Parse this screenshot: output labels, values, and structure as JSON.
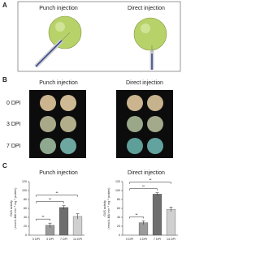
{
  "panel_a": {
    "label": "A",
    "titles": [
      "Punch injection",
      "Direct injection"
    ]
  },
  "panel_b": {
    "label": "B",
    "titles": [
      "Punch injection",
      "Direct injection"
    ],
    "rows": [
      "0 DPI",
      "3 DPI",
      "7 DPI"
    ]
  },
  "panel_c": {
    "label": "C"
  },
  "chart_data": [
    {
      "type": "bar",
      "title": "Punch injection",
      "y_label": [
        "GUS activity",
        "(nmol 4-MU min⁻¹ mg⁻¹ protein)"
      ],
      "categories": [
        "0 DPI",
        "3 DPI",
        "7 DPI",
        "14 DPI"
      ],
      "values": [
        0,
        22,
        62,
        42
      ],
      "errors": [
        0,
        5,
        4,
        6
      ],
      "colors": [
        "#3a3a3a",
        "#9a9a9a",
        "#6e6e6e",
        "#d0d0d0"
      ],
      "ylim": [
        0,
        120
      ],
      "yticks": [
        0,
        20,
        40,
        60,
        80,
        100,
        120
      ],
      "significance": [
        "**",
        "**",
        "**"
      ]
    },
    {
      "type": "bar",
      "title": "Direct injection",
      "y_label": [
        "GUS activity",
        "(nmol 4-MU min⁻¹ mg⁻¹ protein)"
      ],
      "categories": [
        "0 DPI",
        "3 DPI",
        "7 DPI",
        "14 DPI"
      ],
      "values": [
        0,
        28,
        92,
        58
      ],
      "errors": [
        0,
        4,
        3,
        5
      ],
      "colors": [
        "#3a3a3a",
        "#9a9a9a",
        "#6e6e6e",
        "#d0d0d0"
      ],
      "ylim": [
        0,
        120
      ],
      "yticks": [
        0,
        20,
        40,
        60,
        80,
        100,
        120
      ],
      "significance": [
        "**",
        "**",
        "**"
      ]
    }
  ]
}
